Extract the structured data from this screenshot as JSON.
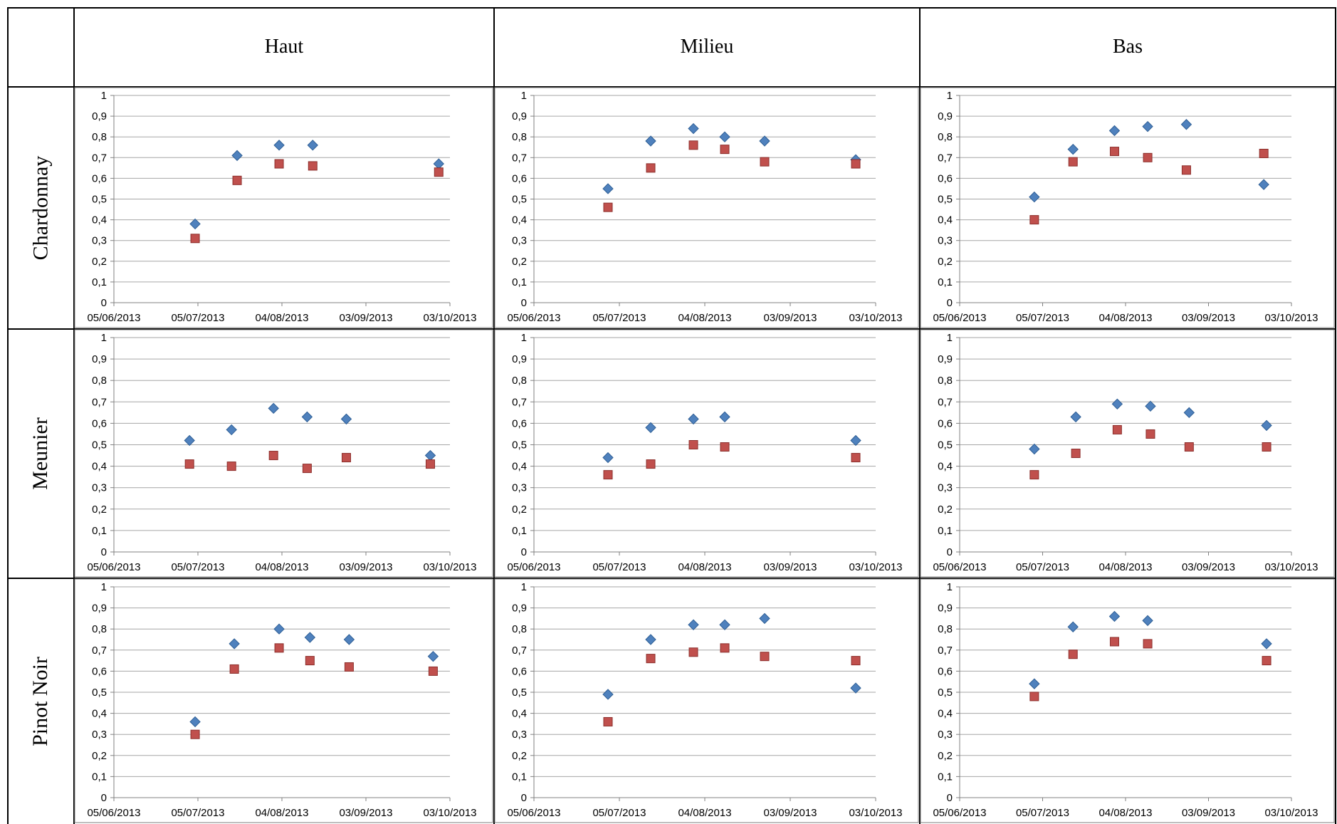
{
  "table": {
    "columns": [
      "Haut",
      "Milieu",
      "Bas"
    ],
    "rows": [
      "Chardonnay",
      "Meunier",
      "Pinot Noir"
    ]
  },
  "colors": {
    "series_1": "#4F81BD",
    "series_2": "#C0504D",
    "gridline": "#A6A6A6"
  },
  "chart_data": [
    {
      "type": "scatter",
      "row": "Chardonnay",
      "column": "Haut",
      "x_ticks": [
        "05/06/2013",
        "05/07/2013",
        "04/08/2013",
        "03/09/2013",
        "03/10/2013"
      ],
      "y_ticks": [
        "0",
        "0,1",
        "0,2",
        "0,3",
        "0,4",
        "0,5",
        "0,6",
        "0,7",
        "0,8",
        "0,9",
        "1"
      ],
      "xlim": [
        "2013-06-05",
        "2013-10-03"
      ],
      "ylim": [
        0,
        1
      ],
      "grid": true,
      "legend": "none",
      "series": [
        {
          "color": "#4F81BD",
          "marker": "diamond",
          "points": [
            [
              "2013-07-04",
              0.38
            ],
            [
              "2013-07-19",
              0.71
            ],
            [
              "2013-08-03",
              0.76
            ],
            [
              "2013-08-15",
              0.76
            ],
            [
              "2013-09-29",
              0.67
            ]
          ]
        },
        {
          "color": "#C0504D",
          "marker": "square",
          "points": [
            [
              "2013-07-04",
              0.31
            ],
            [
              "2013-07-19",
              0.59
            ],
            [
              "2013-08-03",
              0.67
            ],
            [
              "2013-08-15",
              0.66
            ],
            [
              "2013-09-29",
              0.63
            ]
          ]
        }
      ]
    },
    {
      "type": "scatter",
      "row": "Chardonnay",
      "column": "Milieu",
      "x_ticks": [
        "05/06/2013",
        "05/07/2013",
        "04/08/2013",
        "03/09/2013",
        "03/10/2013"
      ],
      "y_ticks": [
        "0",
        "0,1",
        "0,2",
        "0,3",
        "0,4",
        "0,5",
        "0,6",
        "0,7",
        "0,8",
        "0,9",
        "1"
      ],
      "xlim": [
        "2013-06-05",
        "2013-10-03"
      ],
      "ylim": [
        0,
        1
      ],
      "grid": true,
      "legend": "none",
      "series": [
        {
          "color": "#4F81BD",
          "marker": "diamond",
          "points": [
            [
              "2013-07-01",
              0.55
            ],
            [
              "2013-07-16",
              0.78
            ],
            [
              "2013-07-31",
              0.84
            ],
            [
              "2013-08-11",
              0.8
            ],
            [
              "2013-08-25",
              0.78
            ],
            [
              "2013-09-26",
              0.69
            ]
          ]
        },
        {
          "color": "#C0504D",
          "marker": "square",
          "points": [
            [
              "2013-07-01",
              0.46
            ],
            [
              "2013-07-16",
              0.65
            ],
            [
              "2013-07-31",
              0.76
            ],
            [
              "2013-08-11",
              0.74
            ],
            [
              "2013-08-25",
              0.68
            ],
            [
              "2013-09-26",
              0.67
            ]
          ]
        }
      ]
    },
    {
      "type": "scatter",
      "row": "Chardonnay",
      "column": "Bas",
      "x_ticks": [
        "05/06/2013",
        "05/07/2013",
        "04/08/2013",
        "03/09/2013",
        "03/10/2013"
      ],
      "y_ticks": [
        "0",
        "0,1",
        "0,2",
        "0,3",
        "0,4",
        "0,5",
        "0,6",
        "0,7",
        "0,8",
        "0,9",
        "1"
      ],
      "xlim": [
        "2013-06-05",
        "2013-10-03"
      ],
      "ylim": [
        0,
        1
      ],
      "grid": true,
      "legend": "none",
      "series": [
        {
          "color": "#4F81BD",
          "marker": "diamond",
          "points": [
            [
              "2013-07-02",
              0.51
            ],
            [
              "2013-07-16",
              0.74
            ],
            [
              "2013-07-31",
              0.83
            ],
            [
              "2013-08-12",
              0.85
            ],
            [
              "2013-08-26",
              0.86
            ],
            [
              "2013-09-23",
              0.57
            ]
          ]
        },
        {
          "color": "#C0504D",
          "marker": "square",
          "points": [
            [
              "2013-07-02",
              0.4
            ],
            [
              "2013-07-16",
              0.68
            ],
            [
              "2013-07-31",
              0.73
            ],
            [
              "2013-08-12",
              0.7
            ],
            [
              "2013-08-26",
              0.64
            ],
            [
              "2013-09-23",
              0.72
            ]
          ]
        }
      ]
    },
    {
      "type": "scatter",
      "row": "Meunier",
      "column": "Haut",
      "x_ticks": [
        "05/06/2013",
        "05/07/2013",
        "04/08/2013",
        "03/09/2013",
        "03/10/2013"
      ],
      "y_ticks": [
        "0",
        "0,1",
        "0,2",
        "0,3",
        "0,4",
        "0,5",
        "0,6",
        "0,7",
        "0,8",
        "0,9",
        "1"
      ],
      "xlim": [
        "2013-06-05",
        "2013-10-03"
      ],
      "ylim": [
        0,
        1
      ],
      "grid": true,
      "legend": "none",
      "series": [
        {
          "color": "#4F81BD",
          "marker": "diamond",
          "points": [
            [
              "2013-07-02",
              0.52
            ],
            [
              "2013-07-17",
              0.57
            ],
            [
              "2013-08-01",
              0.67
            ],
            [
              "2013-08-13",
              0.63
            ],
            [
              "2013-08-27",
              0.62
            ],
            [
              "2013-09-26",
              0.45
            ]
          ]
        },
        {
          "color": "#C0504D",
          "marker": "square",
          "points": [
            [
              "2013-07-02",
              0.41
            ],
            [
              "2013-07-17",
              0.4
            ],
            [
              "2013-08-01",
              0.45
            ],
            [
              "2013-08-13",
              0.39
            ],
            [
              "2013-08-27",
              0.44
            ],
            [
              "2013-09-26",
              0.41
            ]
          ]
        }
      ]
    },
    {
      "type": "scatter",
      "row": "Meunier",
      "column": "Milieu",
      "x_ticks": [
        "05/06/2013",
        "05/07/2013",
        "04/08/2013",
        "03/09/2013",
        "03/10/2013"
      ],
      "y_ticks": [
        "0",
        "0,1",
        "0,2",
        "0,3",
        "0,4",
        "0,5",
        "0,6",
        "0,7",
        "0,8",
        "0,9",
        "1"
      ],
      "xlim": [
        "2013-06-05",
        "2013-10-03"
      ],
      "ylim": [
        0,
        1
      ],
      "grid": true,
      "legend": "none",
      "series": [
        {
          "color": "#4F81BD",
          "marker": "diamond",
          "points": [
            [
              "2013-07-01",
              0.44
            ],
            [
              "2013-07-16",
              0.58
            ],
            [
              "2013-07-31",
              0.62
            ],
            [
              "2013-08-11",
              0.63
            ],
            [
              "2013-09-26",
              0.52
            ]
          ]
        },
        {
          "color": "#C0504D",
          "marker": "square",
          "points": [
            [
              "2013-07-01",
              0.36
            ],
            [
              "2013-07-16",
              0.41
            ],
            [
              "2013-07-31",
              0.5
            ],
            [
              "2013-08-11",
              0.49
            ],
            [
              "2013-09-26",
              0.44
            ]
          ]
        }
      ]
    },
    {
      "type": "scatter",
      "row": "Meunier",
      "column": "Bas",
      "x_ticks": [
        "05/06/2013",
        "05/07/2013",
        "04/08/2013",
        "03/09/2013",
        "03/10/2013"
      ],
      "y_ticks": [
        "0",
        "0,1",
        "0,2",
        "0,3",
        "0,4",
        "0,5",
        "0,6",
        "0,7",
        "0,8",
        "0,9",
        "1"
      ],
      "xlim": [
        "2013-06-05",
        "2013-10-03"
      ],
      "ylim": [
        0,
        1
      ],
      "grid": true,
      "legend": "none",
      "series": [
        {
          "color": "#4F81BD",
          "marker": "diamond",
          "points": [
            [
              "2013-07-02",
              0.48
            ],
            [
              "2013-07-17",
              0.63
            ],
            [
              "2013-08-01",
              0.69
            ],
            [
              "2013-08-13",
              0.68
            ],
            [
              "2013-08-27",
              0.65
            ],
            [
              "2013-09-24",
              0.59
            ]
          ]
        },
        {
          "color": "#C0504D",
          "marker": "square",
          "points": [
            [
              "2013-07-02",
              0.36
            ],
            [
              "2013-07-17",
              0.46
            ],
            [
              "2013-08-01",
              0.57
            ],
            [
              "2013-08-13",
              0.55
            ],
            [
              "2013-08-27",
              0.49
            ],
            [
              "2013-09-24",
              0.49
            ]
          ]
        }
      ]
    },
    {
      "type": "scatter",
      "row": "Pinot Noir",
      "column": "Haut",
      "x_ticks": [
        "05/06/2013",
        "05/07/2013",
        "04/08/2013",
        "03/09/2013",
        "03/10/2013"
      ],
      "y_ticks": [
        "0",
        "0,1",
        "0,2",
        "0,3",
        "0,4",
        "0,5",
        "0,6",
        "0,7",
        "0,8",
        "0,9",
        "1"
      ],
      "xlim": [
        "2013-06-05",
        "2013-10-03"
      ],
      "ylim": [
        0,
        1
      ],
      "grid": true,
      "legend": "none",
      "series": [
        {
          "color": "#4F81BD",
          "marker": "diamond",
          "points": [
            [
              "2013-07-04",
              0.36
            ],
            [
              "2013-07-18",
              0.73
            ],
            [
              "2013-08-03",
              0.8
            ],
            [
              "2013-08-14",
              0.76
            ],
            [
              "2013-08-28",
              0.75
            ],
            [
              "2013-09-27",
              0.67
            ]
          ]
        },
        {
          "color": "#C0504D",
          "marker": "square",
          "points": [
            [
              "2013-07-04",
              0.3
            ],
            [
              "2013-07-18",
              0.61
            ],
            [
              "2013-08-03",
              0.71
            ],
            [
              "2013-08-14",
              0.65
            ],
            [
              "2013-08-28",
              0.62
            ],
            [
              "2013-09-27",
              0.6
            ]
          ]
        }
      ]
    },
    {
      "type": "scatter",
      "row": "Pinot Noir",
      "column": "Milieu",
      "x_ticks": [
        "05/06/2013",
        "05/07/2013",
        "04/08/2013",
        "03/09/2013",
        "03/10/2013"
      ],
      "y_ticks": [
        "0",
        "0,1",
        "0,2",
        "0,3",
        "0,4",
        "0,5",
        "0,6",
        "0,7",
        "0,8",
        "0,9",
        "1"
      ],
      "xlim": [
        "2013-06-05",
        "2013-10-03"
      ],
      "ylim": [
        0,
        1
      ],
      "grid": true,
      "legend": "none",
      "series": [
        {
          "color": "#4F81BD",
          "marker": "diamond",
          "points": [
            [
              "2013-07-01",
              0.49
            ],
            [
              "2013-07-16",
              0.75
            ],
            [
              "2013-07-31",
              0.82
            ],
            [
              "2013-08-11",
              0.82
            ],
            [
              "2013-08-25",
              0.85
            ],
            [
              "2013-09-26",
              0.52
            ]
          ]
        },
        {
          "color": "#C0504D",
          "marker": "square",
          "points": [
            [
              "2013-07-01",
              0.36
            ],
            [
              "2013-07-16",
              0.66
            ],
            [
              "2013-07-31",
              0.69
            ],
            [
              "2013-08-11",
              0.71
            ],
            [
              "2013-08-25",
              0.67
            ],
            [
              "2013-09-26",
              0.65
            ]
          ]
        }
      ]
    },
    {
      "type": "scatter",
      "row": "Pinot Noir",
      "column": "Bas",
      "x_ticks": [
        "05/06/2013",
        "05/07/2013",
        "04/08/2013",
        "03/09/2013",
        "03/10/2013"
      ],
      "y_ticks": [
        "0",
        "0,1",
        "0,2",
        "0,3",
        "0,4",
        "0,5",
        "0,6",
        "0,7",
        "0,8",
        "0,9",
        "1"
      ],
      "xlim": [
        "2013-06-05",
        "2013-10-03"
      ],
      "ylim": [
        0,
        1
      ],
      "grid": true,
      "legend": "none",
      "series": [
        {
          "color": "#4F81BD",
          "marker": "diamond",
          "points": [
            [
              "2013-07-02",
              0.54
            ],
            [
              "2013-07-16",
              0.81
            ],
            [
              "2013-07-31",
              0.86
            ],
            [
              "2013-08-12",
              0.84
            ],
            [
              "2013-09-24",
              0.73
            ]
          ]
        },
        {
          "color": "#C0504D",
          "marker": "square",
          "points": [
            [
              "2013-07-02",
              0.48
            ],
            [
              "2013-07-16",
              0.68
            ],
            [
              "2013-07-31",
              0.74
            ],
            [
              "2013-08-12",
              0.73
            ],
            [
              "2013-09-24",
              0.65
            ]
          ]
        }
      ]
    }
  ]
}
